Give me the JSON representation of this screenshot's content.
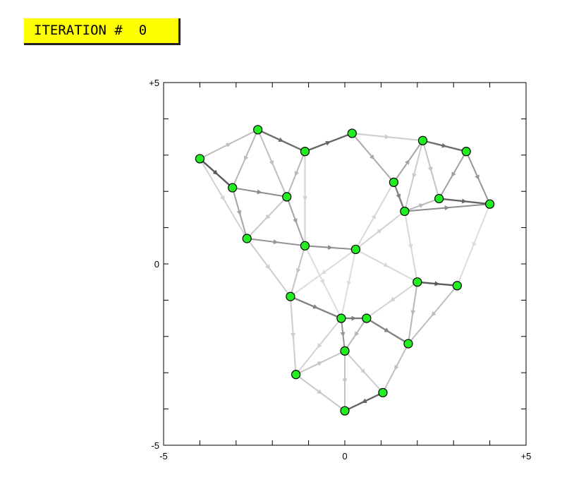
{
  "banner": {
    "label": "ITERATION #",
    "value": "0"
  },
  "colors": {
    "banner_background": "#ffff00",
    "node_fill": "#22ee22",
    "node_stroke": "#000000",
    "frame": "#000000"
  },
  "chart_data": {
    "type": "network",
    "xlim": [
      -5,
      5
    ],
    "ylim": [
      -5,
      5
    ],
    "grid": false,
    "tick_labels": {
      "x_min": "-5",
      "x_mid": "0",
      "x_max": "+5",
      "y_min": "-5",
      "y_mid": "0",
      "y_max": "+5"
    },
    "nodes": [
      {
        "id": "A",
        "x": -4.0,
        "y": 2.9
      },
      {
        "id": "B",
        "x": -2.4,
        "y": 3.7
      },
      {
        "id": "C",
        "x": -1.1,
        "y": 3.1
      },
      {
        "id": "D",
        "x": 0.2,
        "y": 3.6
      },
      {
        "id": "E",
        "x": -3.1,
        "y": 2.1
      },
      {
        "id": "F",
        "x": -1.6,
        "y": 1.85
      },
      {
        "id": "G",
        "x": -2.7,
        "y": 0.7
      },
      {
        "id": "H",
        "x": -1.1,
        "y": 0.5
      },
      {
        "id": "I",
        "x": 0.3,
        "y": 0.4
      },
      {
        "id": "J",
        "x": 1.35,
        "y": 2.25
      },
      {
        "id": "K",
        "x": 2.15,
        "y": 3.4
      },
      {
        "id": "L",
        "x": 3.35,
        "y": 3.1
      },
      {
        "id": "M",
        "x": 2.6,
        "y": 1.8
      },
      {
        "id": "N",
        "x": 1.65,
        "y": 1.45
      },
      {
        "id": "O",
        "x": 4.0,
        "y": 1.65
      },
      {
        "id": "P",
        "x": 2.0,
        "y": -0.5
      },
      {
        "id": "Q",
        "x": 3.1,
        "y": -0.6
      },
      {
        "id": "R",
        "x": -1.5,
        "y": -0.9
      },
      {
        "id": "S",
        "x": -0.1,
        "y": -1.5
      },
      {
        "id": "T",
        "x": 0.6,
        "y": -1.5
      },
      {
        "id": "U",
        "x": 1.75,
        "y": -2.2
      },
      {
        "id": "V",
        "x": 0.0,
        "y": -2.4
      },
      {
        "id": "W",
        "x": -1.35,
        "y": -3.05
      },
      {
        "id": "X",
        "x": 1.05,
        "y": -3.55
      },
      {
        "id": "Y",
        "x": 0.0,
        "y": -4.05
      }
    ],
    "edges": [
      {
        "from": "A",
        "to": "E",
        "shade": 0.25
      },
      {
        "from": "B",
        "to": "C",
        "shade": 0.35
      },
      {
        "from": "C",
        "to": "D",
        "shade": 0.3
      },
      {
        "from": "K",
        "to": "L",
        "shade": 0.35
      },
      {
        "from": "M",
        "to": "O",
        "shade": 0.3
      },
      {
        "from": "P",
        "to": "Q",
        "shade": 0.25
      },
      {
        "from": "X",
        "to": "Y",
        "shade": 0.3
      },
      {
        "from": "S",
        "to": "T",
        "shade": 0.4
      },
      {
        "from": "R",
        "to": "S",
        "shade": 0.45
      },
      {
        "from": "T",
        "to": "U",
        "shade": 0.45
      },
      {
        "from": "E",
        "to": "F",
        "shade": 0.5
      },
      {
        "from": "H",
        "to": "I",
        "shade": 0.5
      },
      {
        "from": "G",
        "to": "H",
        "shade": 0.55
      },
      {
        "from": "J",
        "to": "N",
        "shade": 0.45
      },
      {
        "from": "L",
        "to": "O",
        "shade": 0.55
      },
      {
        "from": "N",
        "to": "O",
        "shade": 0.5
      },
      {
        "from": "L",
        "to": "M",
        "shade": 0.6
      },
      {
        "from": "S",
        "to": "V",
        "shade": 0.55
      },
      {
        "from": "F",
        "to": "H",
        "shade": 0.6
      },
      {
        "from": "E",
        "to": "G",
        "shade": 0.62
      },
      {
        "from": "J",
        "to": "K",
        "shade": 0.62
      },
      {
        "from": "D",
        "to": "J",
        "shade": 0.65
      },
      {
        "from": "A",
        "to": "B",
        "shade": 0.75
      },
      {
        "from": "B",
        "to": "E",
        "shade": 0.72
      },
      {
        "from": "B",
        "to": "F",
        "shade": 0.75
      },
      {
        "from": "C",
        "to": "F",
        "shade": 0.72
      },
      {
        "from": "A",
        "to": "G",
        "shade": 0.85
      },
      {
        "from": "G",
        "to": "R",
        "shade": 0.82
      },
      {
        "from": "H",
        "to": "R",
        "shade": 0.78
      },
      {
        "from": "R",
        "to": "W",
        "shade": 0.82
      },
      {
        "from": "W",
        "to": "V",
        "shade": 0.78
      },
      {
        "from": "W",
        "to": "Y",
        "shade": 0.8
      },
      {
        "from": "V",
        "to": "Y",
        "shade": 0.78
      },
      {
        "from": "V",
        "to": "X",
        "shade": 0.82
      },
      {
        "from": "U",
        "to": "X",
        "shade": 0.75
      },
      {
        "from": "T",
        "to": "V",
        "shade": 0.72
      },
      {
        "from": "P",
        "to": "U",
        "shade": 0.72
      },
      {
        "from": "Q",
        "to": "U",
        "shade": 0.75
      },
      {
        "from": "D",
        "to": "K",
        "shade": 0.82
      },
      {
        "from": "K",
        "to": "M",
        "shade": 0.78
      },
      {
        "from": "N",
        "to": "M",
        "shade": 0.72
      },
      {
        "from": "I",
        "to": "N",
        "shade": 0.85
      },
      {
        "from": "I",
        "to": "P",
        "shade": 0.88
      },
      {
        "from": "I",
        "to": "S",
        "shade": 0.9
      },
      {
        "from": "I",
        "to": "J",
        "shade": 0.88
      },
      {
        "from": "I",
        "to": "R",
        "shade": 0.9
      },
      {
        "from": "P",
        "to": "T",
        "shade": 0.85
      },
      {
        "from": "N",
        "to": "P",
        "shade": 0.88
      },
      {
        "from": "O",
        "to": "Q",
        "shade": 0.9
      },
      {
        "from": "C",
        "to": "H",
        "shade": 0.85
      },
      {
        "from": "F",
        "to": "G",
        "shade": 0.8
      },
      {
        "from": "S",
        "to": "W",
        "shade": 0.85
      },
      {
        "from": "H",
        "to": "S",
        "shade": 0.9
      },
      {
        "from": "K",
        "to": "N",
        "shade": 0.82
      }
    ]
  }
}
